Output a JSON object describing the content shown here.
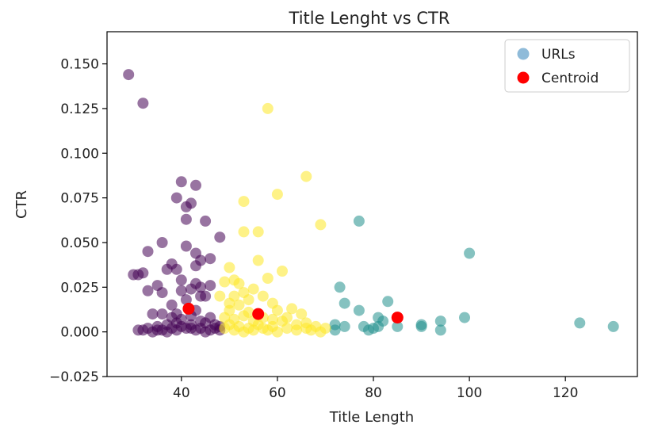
{
  "chart_data": {
    "type": "scatter",
    "title": "Title Lenght vs CTR",
    "xlabel": "Title Length",
    "ylabel": "CTR",
    "xlim": [
      24.5,
      135
    ],
    "ylim": [
      -0.025,
      0.168
    ],
    "xticks": [
      40,
      60,
      80,
      100,
      120
    ],
    "xtick_labels": [
      "40",
      "60",
      "80",
      "100",
      "120"
    ],
    "yticks": [
      -0.025,
      0,
      0.025,
      0.05,
      0.075,
      0.1,
      0.125,
      0.15
    ],
    "ytick_labels": [
      "−0.025",
      "0.000",
      "0.025",
      "0.050",
      "0.075",
      "0.100",
      "0.125",
      "0.150"
    ],
    "grid": false,
    "legend_position": "top-right",
    "legend": [
      {
        "label": "URLs",
        "color": "#1f77b4"
      },
      {
        "label": "Centroid",
        "color": "#ff0000"
      }
    ],
    "cluster_colors": [
      "#440154",
      "#21908d",
      "#fde725"
    ],
    "marker_alpha": 0.55,
    "series": [
      {
        "cluster": 0,
        "points": [
          [
            29,
            0.144
          ],
          [
            32,
            0.128
          ],
          [
            40,
            0.084
          ],
          [
            43,
            0.082
          ],
          [
            39,
            0.075
          ],
          [
            42,
            0.072
          ],
          [
            41,
            0.063
          ],
          [
            41,
            0.07
          ],
          [
            45,
            0.062
          ],
          [
            48,
            0.053
          ],
          [
            36,
            0.05
          ],
          [
            33,
            0.045
          ],
          [
            41,
            0.048
          ],
          [
            43,
            0.044
          ],
          [
            44,
            0.04
          ],
          [
            46,
            0.041
          ],
          [
            43,
            0.037
          ],
          [
            38,
            0.038
          ],
          [
            37,
            0.035
          ],
          [
            39,
            0.035
          ],
          [
            30,
            0.032
          ],
          [
            31,
            0.032
          ],
          [
            32,
            0.033
          ],
          [
            40,
            0.029
          ],
          [
            43,
            0.027
          ],
          [
            44,
            0.025
          ],
          [
            42,
            0.024
          ],
          [
            35,
            0.026
          ],
          [
            33,
            0.023
          ],
          [
            36,
            0.022
          ],
          [
            40,
            0.023
          ],
          [
            38,
            0.015
          ],
          [
            41,
            0.018
          ],
          [
            45,
            0.02
          ],
          [
            46,
            0.026
          ],
          [
            44,
            0.02
          ],
          [
            39,
            0.01
          ],
          [
            38,
            0.008
          ],
          [
            36,
            0.01
          ],
          [
            34,
            0.01
          ],
          [
            42,
            0.009
          ],
          [
            43,
            0.012
          ],
          [
            46,
            0.008
          ],
          [
            45,
            0.005
          ],
          [
            47,
            0.004
          ],
          [
            48,
            0.003
          ],
          [
            31,
            0.001
          ],
          [
            32,
            0.001
          ],
          [
            33,
            0.002
          ],
          [
            34,
            0.0
          ],
          [
            35,
            0.001
          ],
          [
            36,
            0.001
          ],
          [
            37,
            0.0
          ],
          [
            38,
            0.002
          ],
          [
            39,
            0.001
          ],
          [
            40,
            0.003
          ],
          [
            41,
            0.002
          ],
          [
            42,
            0.004
          ],
          [
            43,
            0.001
          ],
          [
            44,
            0.002
          ],
          [
            45,
            0.0
          ],
          [
            46,
            0.001
          ],
          [
            47,
            0.002
          ],
          [
            48,
            0.001
          ],
          [
            37,
            0.004
          ],
          [
            39,
            0.005
          ],
          [
            42,
            0.002
          ],
          [
            44,
            0.006
          ],
          [
            35,
            0.003
          ],
          [
            40,
            0.007
          ]
        ]
      },
      {
        "cluster": 1,
        "points": [
          [
            77,
            0.062
          ],
          [
            100,
            0.044
          ],
          [
            73,
            0.025
          ],
          [
            74,
            0.016
          ],
          [
            77,
            0.012
          ],
          [
            83,
            0.017
          ],
          [
            81,
            0.008
          ],
          [
            82,
            0.006
          ],
          [
            78,
            0.003
          ],
          [
            79,
            0.001
          ],
          [
            80,
            0.002
          ],
          [
            81,
            0.003
          ],
          [
            85,
            0.003
          ],
          [
            90,
            0.004
          ],
          [
            90,
            0.003
          ],
          [
            94,
            0.006
          ],
          [
            94,
            0.001
          ],
          [
            99,
            0.008
          ],
          [
            72,
            0.001
          ],
          [
            72,
            0.004
          ],
          [
            74,
            0.003
          ],
          [
            123,
            0.005
          ],
          [
            130,
            0.003
          ]
        ]
      },
      {
        "cluster": 2,
        "points": [
          [
            58,
            0.125
          ],
          [
            66,
            0.087
          ],
          [
            60,
            0.077
          ],
          [
            53,
            0.073
          ],
          [
            69,
            0.06
          ],
          [
            53,
            0.056
          ],
          [
            56,
            0.056
          ],
          [
            56,
            0.04
          ],
          [
            58,
            0.03
          ],
          [
            61,
            0.034
          ],
          [
            50,
            0.036
          ],
          [
            49,
            0.028
          ],
          [
            51,
            0.029
          ],
          [
            52,
            0.027
          ],
          [
            55,
            0.024
          ],
          [
            57,
            0.02
          ],
          [
            54,
            0.018
          ],
          [
            52,
            0.015
          ],
          [
            50,
            0.012
          ],
          [
            51,
            0.02
          ],
          [
            53,
            0.022
          ],
          [
            59,
            0.016
          ],
          [
            60,
            0.012
          ],
          [
            63,
            0.013
          ],
          [
            65,
            0.01
          ],
          [
            61,
            0.006
          ],
          [
            64,
            0.004
          ],
          [
            66,
            0.005
          ],
          [
            68,
            0.003
          ],
          [
            70,
            0.002
          ],
          [
            49,
            0.002
          ],
          [
            50,
            0.004
          ],
          [
            51,
            0.001
          ],
          [
            52,
            0.003
          ],
          [
            53,
            0.0
          ],
          [
            54,
            0.002
          ],
          [
            55,
            0.001
          ],
          [
            56,
            0.004
          ],
          [
            57,
            0.002
          ],
          [
            58,
            0.001
          ],
          [
            59,
            0.003
          ],
          [
            60,
            0.0
          ],
          [
            62,
            0.002
          ],
          [
            64,
            0.001
          ],
          [
            66,
            0.002
          ],
          [
            67,
            0.001
          ],
          [
            69,
            0.0
          ],
          [
            49,
            0.008
          ],
          [
            51,
            0.007
          ],
          [
            53,
            0.009
          ],
          [
            55,
            0.006
          ],
          [
            57,
            0.008
          ],
          [
            59,
            0.007
          ],
          [
            62,
            0.008
          ],
          [
            48,
            0.02
          ],
          [
            50,
            0.016
          ],
          [
            54,
            0.011
          ]
        ]
      }
    ],
    "centroids": [
      {
        "x": 41.5,
        "y": 0.013
      },
      {
        "x": 56,
        "y": 0.01
      },
      {
        "x": 85,
        "y": 0.008
      }
    ]
  }
}
